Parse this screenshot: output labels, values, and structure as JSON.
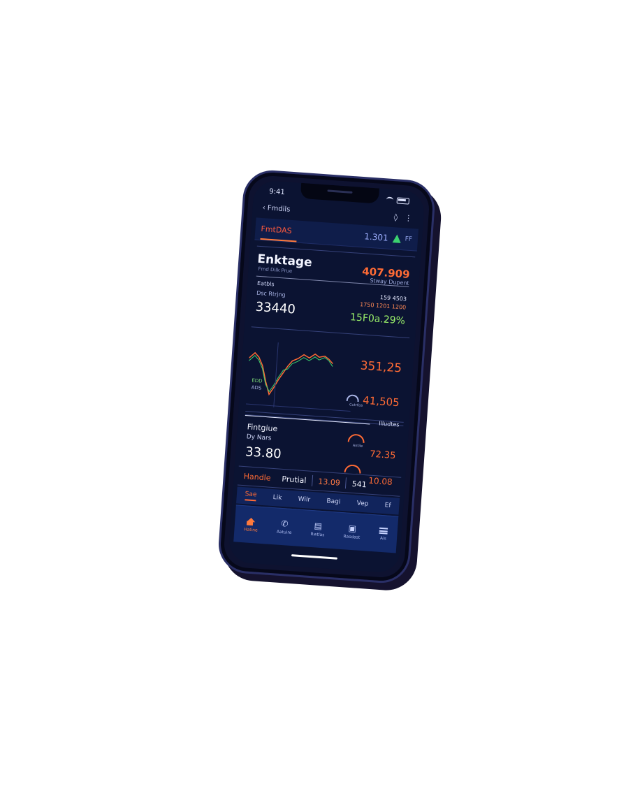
{
  "status_bar": {
    "time": "9:41"
  },
  "nav": {
    "back_label": "‹ Fmdils",
    "action_icon": "◊",
    "more_icon": "⋮"
  },
  "ticker": {
    "name": "FmtDAS",
    "value": "1.301",
    "suffix": "FF",
    "trend": "up"
  },
  "card_summary": {
    "title": "Enktage",
    "subtitle": "Fmd Dilk Prue",
    "right_value": "407.909",
    "right_caption": "Stway Dupent",
    "left_label": "Eatbls",
    "left_label2": "Dsc Rtrjng",
    "left_value": "33440",
    "row1": "159 4503",
    "row2": "1750 1201 1200",
    "row3": "15F0a.29%"
  },
  "chart_panel": {
    "value_top": "351,25",
    "value_bottom": "41,505",
    "side_label_1": "EDD",
    "side_label_2": "ADS",
    "gauge_caption": "Cutrtiss"
  },
  "section": {
    "right_heading": "Illudtes",
    "title": "Fintgiue",
    "subtitle": "Dy Nars",
    "value": "33.80",
    "arc_caption": "Antile",
    "value_top": "72.35",
    "value_bottom": "10.08"
  },
  "summary_bar": {
    "label": "Handle",
    "mode": "Prutial",
    "value1": "13.09",
    "value2": "541"
  },
  "tabs": [
    {
      "label": "Sae",
      "active": true
    },
    {
      "label": "Lik",
      "active": false
    },
    {
      "label": "Wilr",
      "active": false
    },
    {
      "label": "Bagi",
      "active": false
    },
    {
      "label": "Vep",
      "active": false
    },
    {
      "label": "Ef",
      "active": false
    }
  ],
  "bottom_nav": [
    {
      "label": "Hatine",
      "icon": "home-icon",
      "active": true
    },
    {
      "label": "Aatuire",
      "icon": "phone-icon",
      "active": false
    },
    {
      "label": "Rwtlas",
      "icon": "clipboard-icon",
      "active": false
    },
    {
      "label": "Rasdast",
      "icon": "chart-box-icon",
      "active": false
    },
    {
      "label": "Ais",
      "icon": "menu-icon",
      "active": false
    }
  ],
  "colors": {
    "accent": "#ff6b35",
    "positive": "#8ef05a",
    "screen_bg": "#0b1332",
    "nav_bg": "#132a6a"
  }
}
